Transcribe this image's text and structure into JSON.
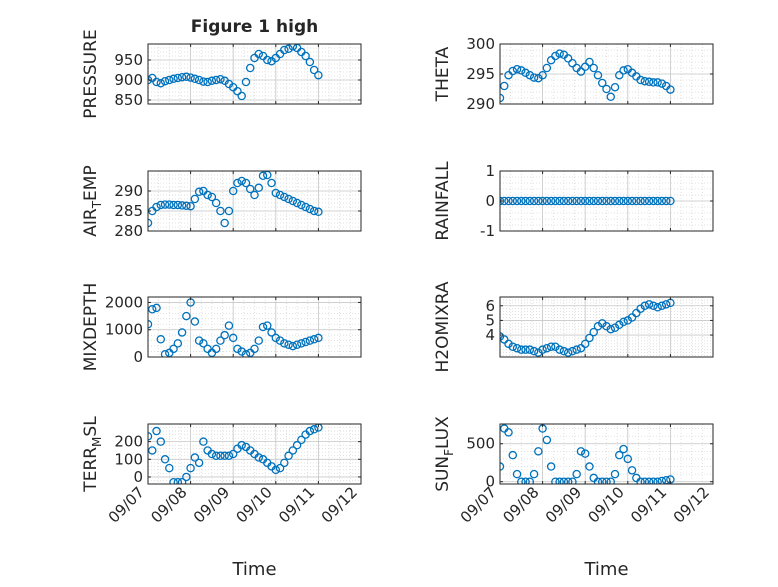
{
  "figure_title": "Figure 1 high",
  "colors": {
    "marker": "#0072BD",
    "axis": "#262626",
    "grid": "#d9d9d9",
    "background": "#ffffff"
  },
  "chart_data": [
    {
      "type": "scatter",
      "id": "pressure",
      "title": "Figure 1 high",
      "ylabel": "PRESSURE",
      "ylabel_sub": "",
      "xlim": [
        0,
        5
      ],
      "ylim": [
        840,
        990
      ],
      "yticks": [
        850,
        900,
        950
      ],
      "ytick_labels": [
        "850",
        "900",
        "950"
      ],
      "x": [
        0.0,
        0.1,
        0.2,
        0.3,
        0.4,
        0.5,
        0.6,
        0.7,
        0.8,
        0.9,
        1.0,
        1.1,
        1.2,
        1.3,
        1.4,
        1.5,
        1.6,
        1.7,
        1.8,
        1.9,
        2.0,
        2.1,
        2.2,
        2.3,
        2.4,
        2.5,
        2.6,
        2.7,
        2.8,
        2.9,
        3.0,
        3.1,
        3.2,
        3.3,
        3.4,
        3.5,
        3.6,
        3.7,
        3.8,
        3.9,
        4.0
      ],
      "y": [
        900,
        905,
        895,
        892,
        897,
        900,
        903,
        905,
        907,
        908,
        906,
        903,
        900,
        896,
        895,
        898,
        900,
        902,
        898,
        890,
        882,
        872,
        860,
        895,
        930,
        955,
        965,
        960,
        950,
        947,
        955,
        965,
        975,
        978,
        984,
        980,
        970,
        960,
        945,
        925,
        912
      ]
    },
    {
      "type": "scatter",
      "id": "theta",
      "title": "",
      "ylabel": "THETA",
      "ylabel_sub": "",
      "xlim": [
        0,
        5
      ],
      "ylim": [
        290,
        300
      ],
      "yticks": [
        290,
        295,
        300
      ],
      "ytick_labels": [
        "290",
        "295",
        "300"
      ],
      "x": [
        0.0,
        0.1,
        0.2,
        0.3,
        0.4,
        0.5,
        0.6,
        0.7,
        0.8,
        0.9,
        1.0,
        1.1,
        1.2,
        1.3,
        1.4,
        1.5,
        1.6,
        1.7,
        1.8,
        1.9,
        2.0,
        2.1,
        2.2,
        2.3,
        2.4,
        2.5,
        2.6,
        2.7,
        2.8,
        2.9,
        3.0,
        3.1,
        3.2,
        3.3,
        3.4,
        3.5,
        3.6,
        3.7,
        3.8,
        3.9,
        4.0
      ],
      "y": [
        291.0,
        293.0,
        294.8,
        295.5,
        295.8,
        295.6,
        295.2,
        294.8,
        294.4,
        294.3,
        294.8,
        296.0,
        297.3,
        298.0,
        298.4,
        298.2,
        297.6,
        296.8,
        296.0,
        295.4,
        296.2,
        297.0,
        296.0,
        294.8,
        293.5,
        292.5,
        291.2,
        292.8,
        294.8,
        295.6,
        295.8,
        295.2,
        294.6,
        294.0,
        293.8,
        293.7,
        293.6,
        293.6,
        293.4,
        293.0,
        292.4
      ]
    },
    {
      "type": "scatter",
      "id": "air_temp",
      "title": "",
      "ylabel": "AIR",
      "ylabel_sub": "T",
      "ylabel_suffix": "EMP",
      "xlim": [
        0,
        5
      ],
      "ylim": [
        280,
        295
      ],
      "yticks": [
        280,
        285,
        290
      ],
      "ytick_labels": [
        "280",
        "285",
        "290"
      ],
      "x": [
        0.0,
        0.1,
        0.2,
        0.3,
        0.4,
        0.5,
        0.6,
        0.7,
        0.8,
        0.9,
        1.0,
        1.1,
        1.2,
        1.3,
        1.4,
        1.5,
        1.6,
        1.7,
        1.8,
        1.9,
        2.0,
        2.1,
        2.2,
        2.3,
        2.4,
        2.5,
        2.6,
        2.7,
        2.8,
        2.9,
        3.0,
        3.1,
        3.2,
        3.3,
        3.4,
        3.5,
        3.6,
        3.7,
        3.8,
        3.9,
        4.0
      ],
      "y": [
        282.0,
        285.0,
        286.0,
        286.5,
        286.6,
        286.6,
        286.5,
        286.5,
        286.4,
        286.3,
        286.2,
        288.0,
        289.8,
        290.0,
        289.0,
        288.5,
        287.0,
        285.0,
        282.0,
        285.0,
        290.0,
        292.0,
        292.5,
        292.0,
        290.5,
        289.0,
        290.8,
        293.8,
        294.0,
        292.0,
        289.5,
        289.0,
        288.5,
        288.0,
        287.5,
        287.0,
        286.5,
        286.0,
        285.5,
        285.0,
        284.8
      ]
    },
    {
      "type": "scatter",
      "id": "rainfall",
      "title": "",
      "ylabel": "RAINFALL",
      "ylabel_sub": "",
      "xlim": [
        0,
        5
      ],
      "ylim": [
        -1,
        1
      ],
      "yticks": [
        -1,
        0,
        1
      ],
      "ytick_labels": [
        "-1",
        "0",
        "1"
      ],
      "x": [
        0.0,
        0.1,
        0.2,
        0.3,
        0.4,
        0.5,
        0.6,
        0.7,
        0.8,
        0.9,
        1.0,
        1.1,
        1.2,
        1.3,
        1.4,
        1.5,
        1.6,
        1.7,
        1.8,
        1.9,
        2.0,
        2.1,
        2.2,
        2.3,
        2.4,
        2.5,
        2.6,
        2.7,
        2.8,
        2.9,
        3.0,
        3.1,
        3.2,
        3.3,
        3.4,
        3.5,
        3.6,
        3.7,
        3.8,
        3.9,
        4.0
      ],
      "y": [
        0,
        0,
        0,
        0,
        0,
        0,
        0,
        0,
        0,
        0,
        0,
        0,
        0,
        0,
        0,
        0,
        0,
        0,
        0,
        0,
        0,
        0,
        0,
        0,
        0,
        0,
        0,
        0,
        0,
        0,
        0,
        0,
        0,
        0,
        0,
        0,
        0,
        0,
        0,
        0,
        0
      ]
    },
    {
      "type": "scatter",
      "id": "mixdepth",
      "title": "",
      "ylabel": "MIXDEPTH",
      "ylabel_sub": "",
      "xlim": [
        0,
        5
      ],
      "ylim": [
        0,
        2200
      ],
      "yticks": [
        0,
        1000,
        2000
      ],
      "ytick_labels": [
        "0",
        "1000",
        "2000"
      ],
      "x": [
        0.0,
        0.1,
        0.2,
        0.3,
        0.4,
        0.5,
        0.6,
        0.7,
        0.8,
        0.9,
        1.0,
        1.1,
        1.2,
        1.3,
        1.4,
        1.5,
        1.6,
        1.7,
        1.8,
        1.9,
        2.0,
        2.1,
        2.2,
        2.3,
        2.4,
        2.5,
        2.6,
        2.7,
        2.8,
        2.9,
        3.0,
        3.1,
        3.2,
        3.3,
        3.4,
        3.5,
        3.6,
        3.7,
        3.8,
        3.9,
        4.0
      ],
      "y": [
        1200,
        1750,
        1800,
        650,
        100,
        150,
        300,
        500,
        900,
        1500,
        2000,
        1300,
        600,
        500,
        300,
        150,
        300,
        600,
        800,
        1150,
        700,
        300,
        200,
        100,
        150,
        300,
        600,
        1100,
        1150,
        900,
        700,
        600,
        500,
        450,
        400,
        450,
        500,
        550,
        600,
        650,
        700
      ]
    },
    {
      "type": "scatter",
      "id": "h2omixra",
      "title": "",
      "ylabel": "H2OMIXRA",
      "ylabel_sub": "",
      "xlim": [
        0,
        5
      ],
      "ylim": [
        2.5,
        6.6
      ],
      "yticks": [
        4,
        5,
        6
      ],
      "ytick_labels": [
        "4",
        "5",
        "6"
      ],
      "x": [
        0.0,
        0.1,
        0.2,
        0.3,
        0.4,
        0.5,
        0.6,
        0.7,
        0.8,
        0.9,
        1.0,
        1.1,
        1.2,
        1.3,
        1.4,
        1.5,
        1.6,
        1.7,
        1.8,
        1.9,
        2.0,
        2.1,
        2.2,
        2.3,
        2.4,
        2.5,
        2.6,
        2.7,
        2.8,
        2.9,
        3.0,
        3.1,
        3.2,
        3.3,
        3.4,
        3.5,
        3.6,
        3.7,
        3.8,
        3.9,
        4.0
      ],
      "y": [
        3.9,
        3.7,
        3.4,
        3.2,
        3.1,
        3.0,
        3.0,
        3.0,
        2.9,
        2.8,
        3.0,
        3.1,
        3.2,
        3.2,
        3.0,
        2.9,
        2.8,
        2.9,
        3.0,
        3.1,
        3.4,
        3.8,
        4.2,
        4.6,
        4.8,
        4.6,
        4.4,
        4.5,
        4.7,
        4.9,
        5.0,
        5.2,
        5.5,
        5.8,
        6.0,
        6.1,
        6.0,
        5.9,
        6.0,
        6.1,
        6.2
      ]
    },
    {
      "type": "scatter",
      "id": "terr_msl",
      "title": "",
      "ylabel": "TERR",
      "ylabel_sub": "M",
      "ylabel_suffix": "SL",
      "xlim": [
        0,
        5
      ],
      "ylim": [
        -40,
        300
      ],
      "yticks": [
        0,
        100,
        200
      ],
      "ytick_labels": [
        "0",
        "100",
        "200"
      ],
      "x": [
        0.0,
        0.1,
        0.2,
        0.3,
        0.4,
        0.5,
        0.6,
        0.7,
        0.8,
        0.9,
        1.0,
        1.1,
        1.2,
        1.3,
        1.4,
        1.5,
        1.6,
        1.7,
        1.8,
        1.9,
        2.0,
        2.1,
        2.2,
        2.3,
        2.4,
        2.5,
        2.6,
        2.7,
        2.8,
        2.9,
        3.0,
        3.1,
        3.2,
        3.3,
        3.4,
        3.5,
        3.6,
        3.7,
        3.8,
        3.9,
        4.0
      ],
      "y": [
        230,
        150,
        260,
        200,
        100,
        50,
        -30,
        -30,
        -30,
        0,
        50,
        110,
        80,
        200,
        150,
        130,
        120,
        120,
        120,
        120,
        130,
        160,
        180,
        170,
        150,
        130,
        110,
        100,
        80,
        60,
        40,
        50,
        80,
        120,
        150,
        180,
        210,
        240,
        260,
        270,
        280
      ]
    },
    {
      "type": "scatter",
      "id": "sun_flux",
      "title": "",
      "ylabel": "SUN",
      "ylabel_sub": "F",
      "ylabel_suffix": "LUX",
      "xlim": [
        0,
        5
      ],
      "ylim": [
        -30,
        760
      ],
      "yticks": [
        0,
        500
      ],
      "ytick_labels": [
        "0",
        "500"
      ],
      "x": [
        0.0,
        0.1,
        0.2,
        0.3,
        0.4,
        0.5,
        0.6,
        0.7,
        0.8,
        0.9,
        1.0,
        1.1,
        1.2,
        1.3,
        1.4,
        1.5,
        1.6,
        1.7,
        1.8,
        1.9,
        2.0,
        2.1,
        2.2,
        2.3,
        2.4,
        2.5,
        2.6,
        2.7,
        2.8,
        2.9,
        3.0,
        3.1,
        3.2,
        3.3,
        3.4,
        3.5,
        3.6,
        3.7,
        3.8,
        3.9,
        4.0
      ],
      "y": [
        200,
        700,
        650,
        350,
        100,
        0,
        0,
        0,
        100,
        400,
        700,
        550,
        200,
        0,
        0,
        0,
        0,
        0,
        100,
        400,
        370,
        200,
        50,
        0,
        0,
        0,
        0,
        100,
        350,
        430,
        300,
        150,
        50,
        0,
        0,
        0,
        0,
        0,
        10,
        20,
        30
      ]
    }
  ],
  "shared_x": {
    "xlabel": "Time",
    "xticks": [
      0,
      1,
      2,
      3,
      4,
      5
    ],
    "xtick_labels": [
      "09/07",
      "09/08",
      "09/09",
      "09/10",
      "09/11",
      "09/12"
    ]
  }
}
